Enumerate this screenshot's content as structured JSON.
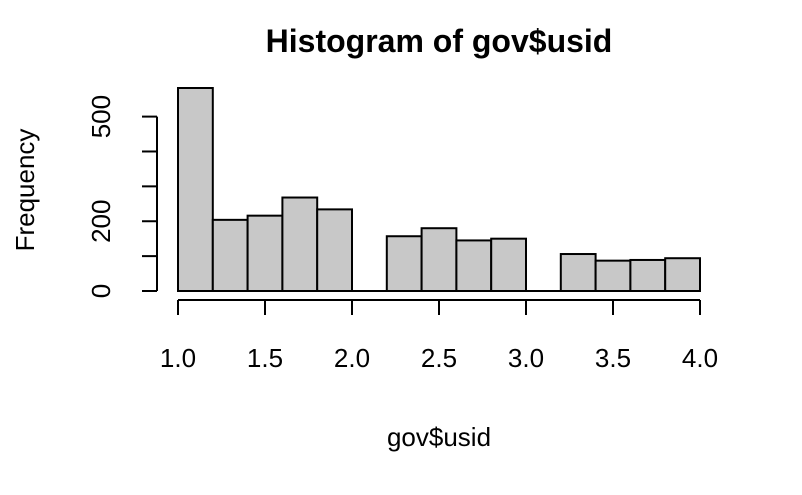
{
  "chart_data": {
    "type": "bar",
    "title": "Histogram of gov$usid",
    "xlabel": "gov$usid",
    "ylabel": "Frequency",
    "bins": [
      [
        1.0,
        1.2
      ],
      [
        1.2,
        1.4
      ],
      [
        1.4,
        1.6
      ],
      [
        1.6,
        1.8
      ],
      [
        1.8,
        2.0
      ],
      [
        2.0,
        2.2
      ],
      [
        2.2,
        2.4
      ],
      [
        2.4,
        2.6
      ],
      [
        2.6,
        2.8
      ],
      [
        2.8,
        3.0
      ],
      [
        3.0,
        3.2
      ],
      [
        3.2,
        3.4
      ],
      [
        3.4,
        3.6
      ],
      [
        3.6,
        3.8
      ],
      [
        3.8,
        4.0
      ]
    ],
    "values": [
      582,
      204,
      216,
      268,
      234,
      0,
      157,
      180,
      145,
      150,
      0,
      106,
      87,
      89,
      94
    ],
    "xlim": [
      1.0,
      4.0
    ],
    "ylim": [
      0,
      582
    ],
    "x_ticks": [
      1.0,
      1.5,
      2.0,
      2.5,
      3.0,
      3.5,
      4.0
    ],
    "x_tick_labels": [
      "1.0",
      "1.5",
      "2.0",
      "2.5",
      "3.0",
      "3.5",
      "4.0"
    ],
    "y_ticks": [
      0,
      100,
      200,
      300,
      400,
      500
    ],
    "y_tick_labels": [
      "0",
      "",
      "200",
      "",
      "",
      "500"
    ],
    "grid": false,
    "bar_fill": "#c8c8c8",
    "bar_stroke": "#000000"
  }
}
